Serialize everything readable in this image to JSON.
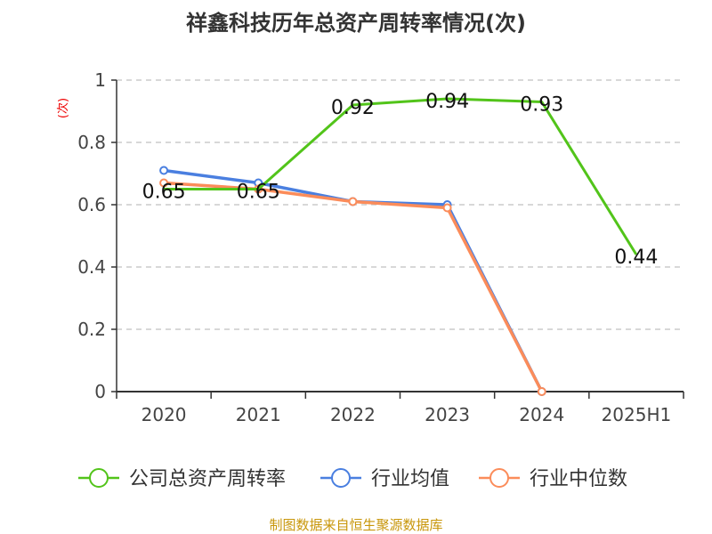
{
  "chart_data": {
    "type": "line",
    "title": "祥鑫科技历年总资产周转率情况(次)",
    "ylabel": "(次)",
    "xlabel": "",
    "categories": [
      "2020",
      "2021",
      "2022",
      "2023",
      "2024",
      "2025H1"
    ],
    "ylim": [
      0,
      1
    ],
    "yticks": [
      "0",
      "0.2",
      "0.4",
      "0.6",
      "0.8",
      "1"
    ],
    "grid": true,
    "legend_position": "bottom",
    "series": [
      {
        "name": "公司总资产周转率",
        "color": "#52c41a",
        "values": [
          0.65,
          0.65,
          0.92,
          0.94,
          0.93,
          0.44
        ],
        "labels": [
          "0.65",
          "0.65",
          "0.92",
          "0.94",
          "0.93",
          "0.44"
        ]
      },
      {
        "name": "行业均值",
        "color": "#4a7fe0",
        "values": [
          0.71,
          0.67,
          0.61,
          0.6,
          0,
          null
        ]
      },
      {
        "name": "行业中位数",
        "color": "#fb8c5a",
        "values": [
          0.67,
          0.65,
          0.61,
          0.59,
          0,
          null
        ]
      }
    ]
  },
  "source": "制图数据来自恒生聚源数据库"
}
